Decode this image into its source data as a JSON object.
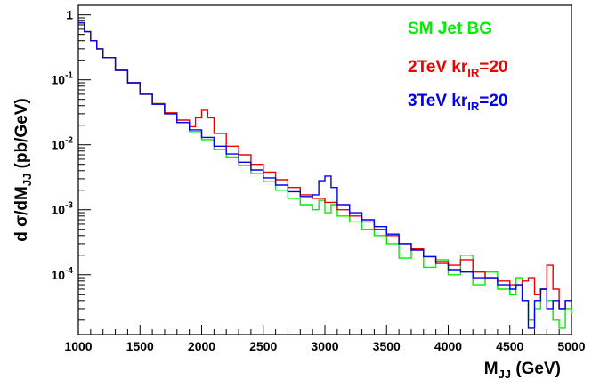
{
  "chart_data": {
    "type": "line",
    "xlabel": {
      "main": "M",
      "sub": "JJ",
      "tail": " (GeV)"
    },
    "ylabel": {
      "prefix": "d σ/dM",
      "sub": "JJ",
      "tail": " (pb/GeV)"
    },
    "xlim": [
      1000,
      5000
    ],
    "ylim": [
      1.2e-05,
      1.4
    ],
    "yscale": "log",
    "grid": false,
    "legend_position": "top-right",
    "x_ticks": [
      {
        "value": 1000,
        "label": "1000"
      },
      {
        "value": 1500,
        "label": "1500"
      },
      {
        "value": 2000,
        "label": "2000"
      },
      {
        "value": 2500,
        "label": "2500"
      },
      {
        "value": 3000,
        "label": "3000"
      },
      {
        "value": 3500,
        "label": "3500"
      },
      {
        "value": 4000,
        "label": "4000"
      },
      {
        "value": 4500,
        "label": "4500"
      },
      {
        "value": 5000,
        "label": "5000"
      }
    ],
    "y_ticks": [
      {
        "value": 1,
        "base": "1",
        "exp": ""
      },
      {
        "value": 0.1,
        "base": "10",
        "exp": "-1"
      },
      {
        "value": 0.01,
        "base": "10",
        "exp": "-2"
      },
      {
        "value": 0.001,
        "base": "10",
        "exp": "-3"
      },
      {
        "value": 0.0001,
        "base": "10",
        "exp": "-4"
      }
    ],
    "series": [
      {
        "name": {
          "main": "SM Jet BG",
          "sub": "",
          "tail": ""
        },
        "color": "#00ee00",
        "x": [
          1000,
          1050,
          1100,
          1150,
          1200,
          1300,
          1400,
          1500,
          1600,
          1700,
          1800,
          1900,
          2000,
          2100,
          2200,
          2300,
          2400,
          2500,
          2600,
          2700,
          2800,
          2900,
          2950,
          3000,
          3050,
          3100,
          3200,
          3300,
          3400,
          3500,
          3600,
          3700,
          3800,
          3900,
          4000,
          4100,
          4200,
          4300,
          4400,
          4500,
          4550,
          4600,
          4650,
          4700,
          4750,
          4800,
          4850,
          4900,
          4950,
          5000
        ],
        "y": [
          0.75,
          0.55,
          0.4,
          0.3,
          0.22,
          0.14,
          0.09,
          0.06,
          0.042,
          0.03,
          0.022,
          0.016,
          0.012,
          0.0085,
          0.0065,
          0.0048,
          0.0036,
          0.0027,
          0.002,
          0.0015,
          0.0012,
          0.001,
          0.0014,
          0.0009,
          0.0012,
          0.0008,
          0.00065,
          0.0005,
          0.0004,
          0.0003,
          0.00018,
          0.00025,
          0.00013,
          0.00017,
          0.0001,
          0.0002,
          7e-05,
          0.00011,
          6e-05,
          5e-05,
          9e-05,
          4e-05,
          2e-05,
          3e-05,
          6e-05,
          4e-05,
          2e-05,
          1.5e-05,
          3e-05,
          2.5e-05
        ]
      },
      {
        "name": {
          "main": "2TeV kr",
          "sub": "IR",
          "tail": "=20"
        },
        "color": "#ee0000",
        "x": [
          1000,
          1050,
          1100,
          1150,
          1200,
          1300,
          1400,
          1500,
          1600,
          1700,
          1800,
          1900,
          1950,
          2000,
          2050,
          2100,
          2200,
          2300,
          2400,
          2500,
          2600,
          2700,
          2800,
          2900,
          3000,
          3100,
          3200,
          3300,
          3400,
          3500,
          3600,
          3700,
          3800,
          3900,
          4000,
          4100,
          4200,
          4300,
          4400,
          4500,
          4600,
          4650,
          4700,
          4750,
          4800,
          4850,
          4900,
          4950,
          5000
        ],
        "y": [
          0.75,
          0.55,
          0.4,
          0.3,
          0.22,
          0.14,
          0.09,
          0.06,
          0.043,
          0.031,
          0.024,
          0.019,
          0.026,
          0.034,
          0.026,
          0.015,
          0.0095,
          0.007,
          0.005,
          0.0038,
          0.0029,
          0.0022,
          0.0017,
          0.0015,
          0.0013,
          0.001,
          0.0008,
          0.00065,
          0.0005,
          0.0004,
          0.0003,
          0.00025,
          0.00019,
          0.00016,
          0.00014,
          0.00017,
          0.00011,
          9e-05,
          8e-05,
          7e-05,
          8e-05,
          9e-05,
          5e-05,
          6e-05,
          0.00014,
          6e-05,
          3e-05,
          4e-05,
          4e-05
        ]
      },
      {
        "name": {
          "main": "3TeV kr",
          "sub": "IR",
          "tail": "=20"
        },
        "color": "#0000ee",
        "x": [
          1000,
          1050,
          1100,
          1150,
          1200,
          1300,
          1400,
          1500,
          1600,
          1700,
          1800,
          1900,
          2000,
          2100,
          2200,
          2300,
          2400,
          2500,
          2600,
          2700,
          2800,
          2900,
          2950,
          3000,
          3050,
          3100,
          3200,
          3300,
          3400,
          3500,
          3600,
          3700,
          3800,
          3900,
          4000,
          4100,
          4200,
          4300,
          4400,
          4500,
          4550,
          4600,
          4650,
          4700,
          4750,
          4800,
          4850,
          4900,
          4950,
          5000
        ],
        "y": [
          0.75,
          0.55,
          0.4,
          0.3,
          0.22,
          0.14,
          0.09,
          0.06,
          0.042,
          0.03,
          0.022,
          0.017,
          0.013,
          0.0095,
          0.0072,
          0.0054,
          0.0041,
          0.0031,
          0.0024,
          0.0019,
          0.0016,
          0.0017,
          0.0028,
          0.0033,
          0.0022,
          0.0012,
          0.0009,
          0.0007,
          0.00055,
          0.00042,
          0.0003,
          0.00024,
          0.00019,
          0.00015,
          0.00012,
          0.00011,
          9e-05,
          9e-05,
          7e-05,
          6e-05,
          7e-05,
          4e-05,
          1.5e-05,
          4e-05,
          6e-05,
          3e-05,
          4e-05,
          3e-05,
          4e-05,
          4e-05
        ]
      }
    ]
  }
}
